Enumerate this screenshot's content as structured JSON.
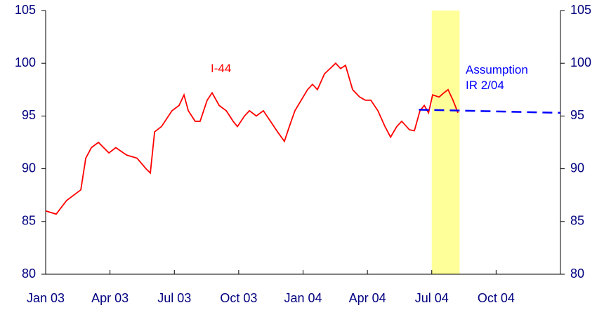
{
  "chart_data": {
    "type": "line",
    "xlim": [
      0,
      24
    ],
    "xticks": [
      {
        "value": 0,
        "label": "Jan 03"
      },
      {
        "value": 3,
        "label": "Apr 03"
      },
      {
        "value": 6,
        "label": "Jul 03"
      },
      {
        "value": 9,
        "label": "Oct 03"
      },
      {
        "value": 12,
        "label": "Jan 04"
      },
      {
        "value": 15,
        "label": "Apr 04"
      },
      {
        "value": 18,
        "label": "Jul 04"
      },
      {
        "value": 21,
        "label": "Oct 04"
      },
      {
        "value": 24,
        "label": ""
      }
    ],
    "ylim": [
      80,
      105
    ],
    "yticks": [
      80,
      85,
      90,
      95,
      100,
      105
    ],
    "y2lim": [
      80,
      105
    ],
    "y2ticks": [
      80,
      85,
      90,
      95,
      100,
      105
    ],
    "highlight": {
      "range": [
        18,
        19.3
      ],
      "color": "#ffff99"
    },
    "series": [
      {
        "name": "I-44",
        "color": "#ff0000",
        "dash": false,
        "x": [
          0,
          0.49,
          0.98,
          1.64,
          1.87,
          2.13,
          2.46,
          2.95,
          3.27,
          3.77,
          4.26,
          4.68,
          4.88,
          5.08,
          5.4,
          5.89,
          6.22,
          6.45,
          6.65,
          6.97,
          7.2,
          7.53,
          7.76,
          8.09,
          8.42,
          8.74,
          8.94,
          9.27,
          9.5,
          9.82,
          10.15,
          10.48,
          10.81,
          11.13,
          11.36,
          11.62,
          12.21,
          12.44,
          12.67,
          13.0,
          13.26,
          13.52,
          13.75,
          13.98,
          14.31,
          14.64,
          14.9,
          15.16,
          15.49,
          15.82,
          16.08,
          16.37,
          16.6,
          16.96,
          17.19,
          17.45,
          17.65,
          17.85,
          18.04,
          18.34,
          18.57,
          18.76,
          18.99,
          19.22
        ],
        "values": [
          86,
          85.7,
          87,
          88,
          91,
          92,
          92.5,
          91.5,
          92,
          91.3,
          91,
          90,
          89.6,
          93.5,
          94,
          95.5,
          96,
          97,
          95.5,
          94.5,
          94.5,
          96.5,
          97.2,
          96,
          95.5,
          94.5,
          94,
          95,
          95.5,
          95,
          95.5,
          94.5,
          93.5,
          92.6,
          94,
          95.5,
          97.5,
          98,
          97.5,
          99,
          99.5,
          100,
          99.5,
          99.8,
          97.5,
          96.8,
          96.5,
          96.5,
          95.5,
          94,
          93,
          94,
          94.5,
          93.7,
          93.6,
          95.5,
          96,
          95.3,
          97,
          96.8,
          97.2,
          97.5,
          96.5,
          95.3
        ]
      },
      {
        "name": "Assumption IR 2/04",
        "color": "#0000ff",
        "dash": true,
        "x": [
          17.4,
          24
        ],
        "values": [
          95.6,
          95.3
        ]
      }
    ]
  }
}
